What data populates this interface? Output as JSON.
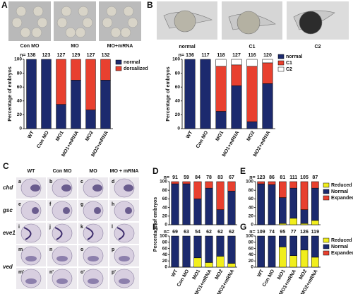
{
  "panel_letters": [
    "A",
    "B",
    "C",
    "D",
    "E",
    "F",
    "G"
  ],
  "panel_a": {
    "labels": [
      "Con MO",
      "MO",
      "MO+mRNA"
    ]
  },
  "panel_b": {
    "labels": [
      "normal",
      "C1",
      "C2"
    ]
  },
  "panel_c": {
    "columns": [
      "WT",
      "Con MO",
      "MO",
      "MO + mRNA"
    ],
    "rows": [
      "chd",
      "gsc",
      "eve1",
      "ved"
    ],
    "letters": [
      "a",
      "b",
      "c",
      "d",
      "e",
      "f",
      "g",
      "h",
      "i",
      "j",
      "k",
      "l",
      "m",
      "n",
      "o",
      "p",
      "m'",
      "n'",
      "o'",
      "p'"
    ]
  },
  "chart_data": [
    {
      "type": "bar",
      "stacked": true,
      "ylabel": "Percentage of embryos",
      "ylim": [
        0,
        100
      ],
      "yticks": [
        0,
        20,
        40,
        60,
        80,
        100
      ],
      "n_prefix": "n=",
      "n": [
        138,
        123,
        127,
        129,
        127,
        132
      ],
      "legend": true,
      "categories": [
        "WT",
        "Con MO",
        "MO1",
        "MO1+mRNA",
        "MO2",
        "MO2+mRNA"
      ],
      "series": [
        {
          "name": "normal",
          "color": "#1c2a6e",
          "values": [
            100,
            100,
            35,
            70,
            27,
            70
          ]
        },
        {
          "name": "dorsalized",
          "color": "#e8402f",
          "values": [
            0,
            0,
            65,
            30,
            73,
            30
          ]
        }
      ]
    },
    {
      "type": "bar",
      "stacked": true,
      "ylabel": "Percentage of embryos",
      "ylim": [
        0,
        100
      ],
      "yticks": [
        0,
        20,
        40,
        60,
        80,
        100
      ],
      "n_prefix": "n=",
      "n": [
        136,
        117,
        118,
        127,
        116,
        120
      ],
      "legend": true,
      "categories": [
        "WT",
        "Con MO",
        "MO1",
        "MO1+mRNA",
        "MO2",
        "MO2+mRNA"
      ],
      "series": [
        {
          "name": "normal",
          "color": "#1c2a6e",
          "values": [
            100,
            100,
            25,
            62,
            10,
            65
          ]
        },
        {
          "name": "C1",
          "color": "#e8402f",
          "values": [
            0,
            0,
            65,
            30,
            80,
            30
          ]
        },
        {
          "name": "C2",
          "color": "#ffffff",
          "values": [
            0,
            0,
            10,
            8,
            10,
            5
          ]
        }
      ]
    },
    {
      "type": "bar",
      "stacked": true,
      "ylabel": "Percentage of embryos",
      "ylim": [
        0,
        100
      ],
      "yticks": [
        0,
        20,
        40,
        60,
        80,
        100
      ],
      "n_prefix": "n=",
      "n": [
        91,
        59,
        84,
        78,
        83,
        67
      ],
      "legend": false,
      "categories": [
        null,
        null,
        null,
        null,
        null,
        null
      ],
      "series": [
        {
          "color": "#f1ee1c",
          "values": [
            0,
            0,
            0,
            0,
            0,
            0
          ]
        },
        {
          "color": "#1c2a6e",
          "values": [
            95,
            95,
            60,
            85,
            35,
            78
          ]
        },
        {
          "color": "#e8402f",
          "values": [
            5,
            5,
            40,
            15,
            65,
            22
          ]
        }
      ]
    },
    {
      "type": "bar",
      "stacked": true,
      "ylim": [
        0,
        100
      ],
      "yticks": [
        0,
        20,
        40,
        60,
        80,
        100
      ],
      "n_prefix": "n=",
      "n": [
        123,
        86,
        81,
        111,
        105,
        87
      ],
      "legend": true,
      "categories": [
        null,
        null,
        null,
        null,
        null,
        null
      ],
      "series": [
        {
          "name": "Reduced",
          "color": "#f1ee1c",
          "values": [
            0,
            0,
            3,
            15,
            3,
            10
          ]
        },
        {
          "name": "Normal",
          "color": "#1c2a6e",
          "values": [
            95,
            93,
            60,
            70,
            32,
            75
          ]
        },
        {
          "name": "Expanded",
          "color": "#e8402f",
          "values": [
            5,
            7,
            37,
            15,
            65,
            15
          ]
        }
      ]
    },
    {
      "type": "bar",
      "stacked": true,
      "ylim": [
        0,
        100
      ],
      "yticks": [
        0,
        20,
        40,
        60,
        80,
        100
      ],
      "n_prefix": "n=",
      "n": [
        69,
        63,
        54,
        62,
        62,
        62
      ],
      "legend": false,
      "categories": [
        "WT",
        "Con MO",
        "MO1",
        "MO1+mRNA",
        "MO2",
        "MO2+mRNA"
      ],
      "series": [
        {
          "color": "#f1ee1c",
          "values": [
            0,
            0,
            30,
            15,
            35,
            12
          ]
        },
        {
          "color": "#1c2a6e",
          "values": [
            100,
            100,
            70,
            85,
            65,
            88
          ]
        },
        {
          "color": "#e8402f",
          "values": [
            0,
            0,
            0,
            0,
            0,
            0
          ]
        }
      ]
    },
    {
      "type": "bar",
      "stacked": true,
      "ylim": [
        0,
        100
      ],
      "yticks": [
        0,
        20,
        40,
        60,
        80,
        100
      ],
      "n_prefix": "n=",
      "n": [
        109,
        74,
        95,
        77,
        126,
        119
      ],
      "legend": true,
      "categories": [
        "WT",
        "Con MO",
        "MO1",
        "MO1+mRNA",
        "MO2",
        "MO2+mRNA"
      ],
      "series": [
        {
          "name": "Reduced",
          "color": "#f1ee1c",
          "values": [
            0,
            0,
            65,
            37,
            55,
            32
          ]
        },
        {
          "name": "Normal",
          "color": "#1c2a6e",
          "values": [
            100,
            100,
            35,
            63,
            45,
            68
          ]
        },
        {
          "name": "Expanded",
          "color": "#e8402f",
          "values": [
            0,
            0,
            0,
            0,
            0,
            0
          ]
        }
      ]
    }
  ]
}
